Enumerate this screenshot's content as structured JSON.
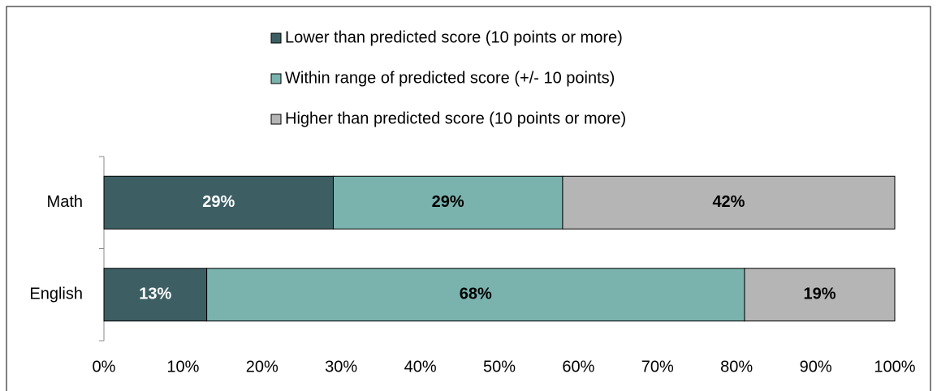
{
  "chart_data": {
    "type": "stacked-bar-horizontal",
    "categories": [
      "Math",
      "English"
    ],
    "series": [
      {
        "name": "Lower than predicted score (10 points or more)",
        "color": "#3d5f63",
        "label_color": "#ffffff",
        "values": [
          29,
          13
        ],
        "value_labels": [
          "29%",
          "13%"
        ]
      },
      {
        "name": "Within range of predicted score (+/- 10 points)",
        "color": "#7ab3ae",
        "label_color": "#000000",
        "values": [
          29,
          68
        ],
        "value_labels": [
          "29%",
          "68%"
        ]
      },
      {
        "name": "Higher than predicted score (10 points or more)",
        "color": "#b5b5b5",
        "label_color": "#000000",
        "values": [
          42,
          19
        ],
        "value_labels": [
          "42%",
          "19%"
        ]
      }
    ],
    "xlim": [
      0,
      100
    ],
    "xticks": [
      {
        "value": 0,
        "label": "0%"
      },
      {
        "value": 10,
        "label": "10%"
      },
      {
        "value": 20,
        "label": "20%"
      },
      {
        "value": 30,
        "label": "30%"
      },
      {
        "value": 40,
        "label": "40%"
      },
      {
        "value": 50,
        "label": "50%"
      },
      {
        "value": 60,
        "label": "60%"
      },
      {
        "value": 70,
        "label": "70%"
      },
      {
        "value": 80,
        "label": "80%"
      },
      {
        "value": 90,
        "label": "90%"
      },
      {
        "value": 100,
        "label": "100%"
      }
    ],
    "legend": "top"
  }
}
